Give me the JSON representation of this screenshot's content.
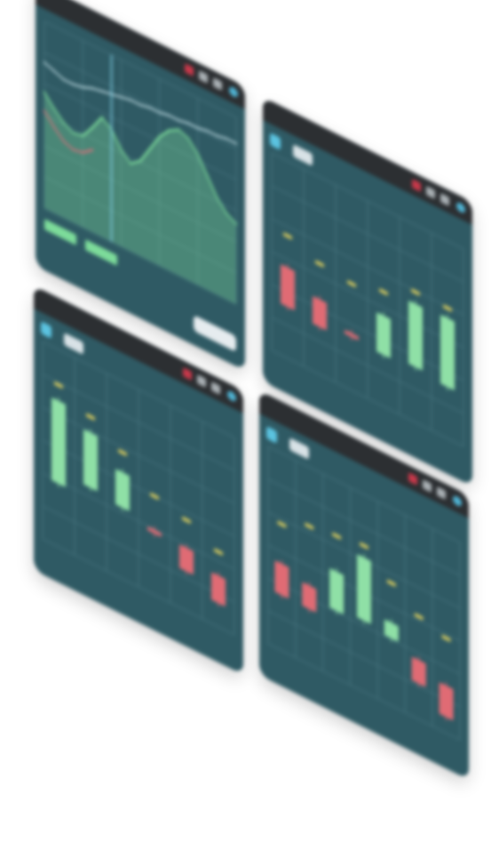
{
  "colors": {
    "background": "#ffffff",
    "panel": "#2f5a64",
    "titlebar": "#2c2f32",
    "grid": "#497680",
    "bull": "#8fe0a6",
    "bear": "#e06b74",
    "marker": "#d9cc5e",
    "line_green": "#7ddc9a",
    "line_red": "#d9707a",
    "line_light": "#b9d6de"
  },
  "windows": [
    {
      "id": "line-chart-window",
      "title": "",
      "icons": [
        "close-icon",
        "minimize-icon",
        "maximize-icon",
        "info-icon"
      ]
    },
    {
      "id": "candle-window-a",
      "title": "",
      "tag": "",
      "icons": [
        "close-icon",
        "minimize-icon",
        "maximize-icon",
        "info-icon"
      ]
    },
    {
      "id": "candle-window-b",
      "title": "",
      "tag": "",
      "icons": [
        "close-icon",
        "minimize-icon",
        "maximize-icon",
        "info-icon"
      ]
    },
    {
      "id": "candle-window-c",
      "title": "",
      "tag": "",
      "icons": [
        "close-icon",
        "minimize-icon",
        "maximize-icon",
        "info-icon"
      ]
    }
  ],
  "chart_data": [
    {
      "type": "line",
      "title": "",
      "x": [
        0,
        1,
        2,
        3,
        4,
        5,
        6,
        7,
        8,
        9,
        10,
        11,
        12,
        13,
        14,
        15,
        16,
        17,
        18,
        19,
        20
      ],
      "ylim": [
        0,
        10
      ],
      "grid": true,
      "series": [
        {
          "values": [
            6.2,
            5.6,
            5.1,
            4.8,
            4.9,
            5.6,
            6.4,
            6.0,
            5.2,
            4.7,
            5.1,
            6.0,
            6.9,
            7.5,
            7.8,
            7.6,
            7.0,
            6.1,
            5.2,
            4.6,
            4.3
          ],
          "style": "area",
          "color_key": "line_green"
        },
        {
          "values": [
            5.2,
            4.6,
            4.1,
            3.9,
            4.0,
            4.4,
            null,
            null,
            null,
            null,
            null,
            null,
            null,
            null,
            null,
            null,
            null,
            null,
            null,
            null,
            null
          ],
          "color_key": "line_red"
        },
        {
          "values": [
            7.8,
            7.6,
            7.4,
            7.4,
            7.5,
            7.7,
            7.8,
            7.9,
            8.0,
            8.1,
            8.1,
            8.2,
            8.2,
            8.3,
            8.3,
            8.4,
            8.4,
            8.5,
            8.5,
            8.6,
            8.6
          ],
          "color_key": "line_light"
        }
      ],
      "indicator_bars": [
        {
          "name": "",
          "value": 1.0
        },
        {
          "name": "",
          "value": 1.0
        }
      ]
    },
    {
      "type": "candlestick",
      "title": "",
      "ylim": [
        0,
        10
      ],
      "grid": true,
      "candles": [
        {
          "open": 4.6,
          "close": 2.6,
          "marker": 6.2
        },
        {
          "open": 3.8,
          "close": 2.4,
          "marker": 5.6
        },
        {
          "open": 2.9,
          "close": 2.7,
          "marker": 5.4
        },
        {
          "open": 2.6,
          "close": 4.6,
          "marker": 5.8
        },
        {
          "open": 2.8,
          "close": 6.0,
          "marker": 6.6
        },
        {
          "open": 2.6,
          "close": 6.1,
          "marker": 6.6
        }
      ]
    },
    {
      "type": "candlestick",
      "title": "",
      "ylim": [
        0,
        10
      ],
      "grid": true,
      "candles": [
        {
          "open": 3.2,
          "close": 7.4,
          "marker": 8.2
        },
        {
          "open": 3.8,
          "close": 6.6,
          "marker": 7.4
        },
        {
          "open": 3.6,
          "close": 5.4,
          "marker": 6.4
        },
        {
          "open": 3.3,
          "close": 3.1,
          "marker": 5.0
        },
        {
          "open": 3.2,
          "close": 2.0,
          "marker": 4.6
        },
        {
          "open": 2.6,
          "close": 1.2,
          "marker": 3.8
        }
      ]
    },
    {
      "type": "candlestick",
      "title": "",
      "ylim": [
        0,
        10
      ],
      "grid": true,
      "candles": [
        {
          "open": 4.4,
          "close": 2.8,
          "marker": 6.4
        },
        {
          "open": 4.0,
          "close": 2.8,
          "marker": 7.0
        },
        {
          "open": 3.4,
          "close": 5.4,
          "marker": 7.2
        },
        {
          "open": 3.6,
          "close": 6.8,
          "marker": 7.4
        },
        {
          "open": 3.4,
          "close": 4.2,
          "marker": 6.2
        },
        {
          "open": 3.0,
          "close": 1.8,
          "marker": 5.2
        },
        {
          "open": 2.4,
          "close": 0.8,
          "marker": 4.8
        }
      ]
    }
  ]
}
